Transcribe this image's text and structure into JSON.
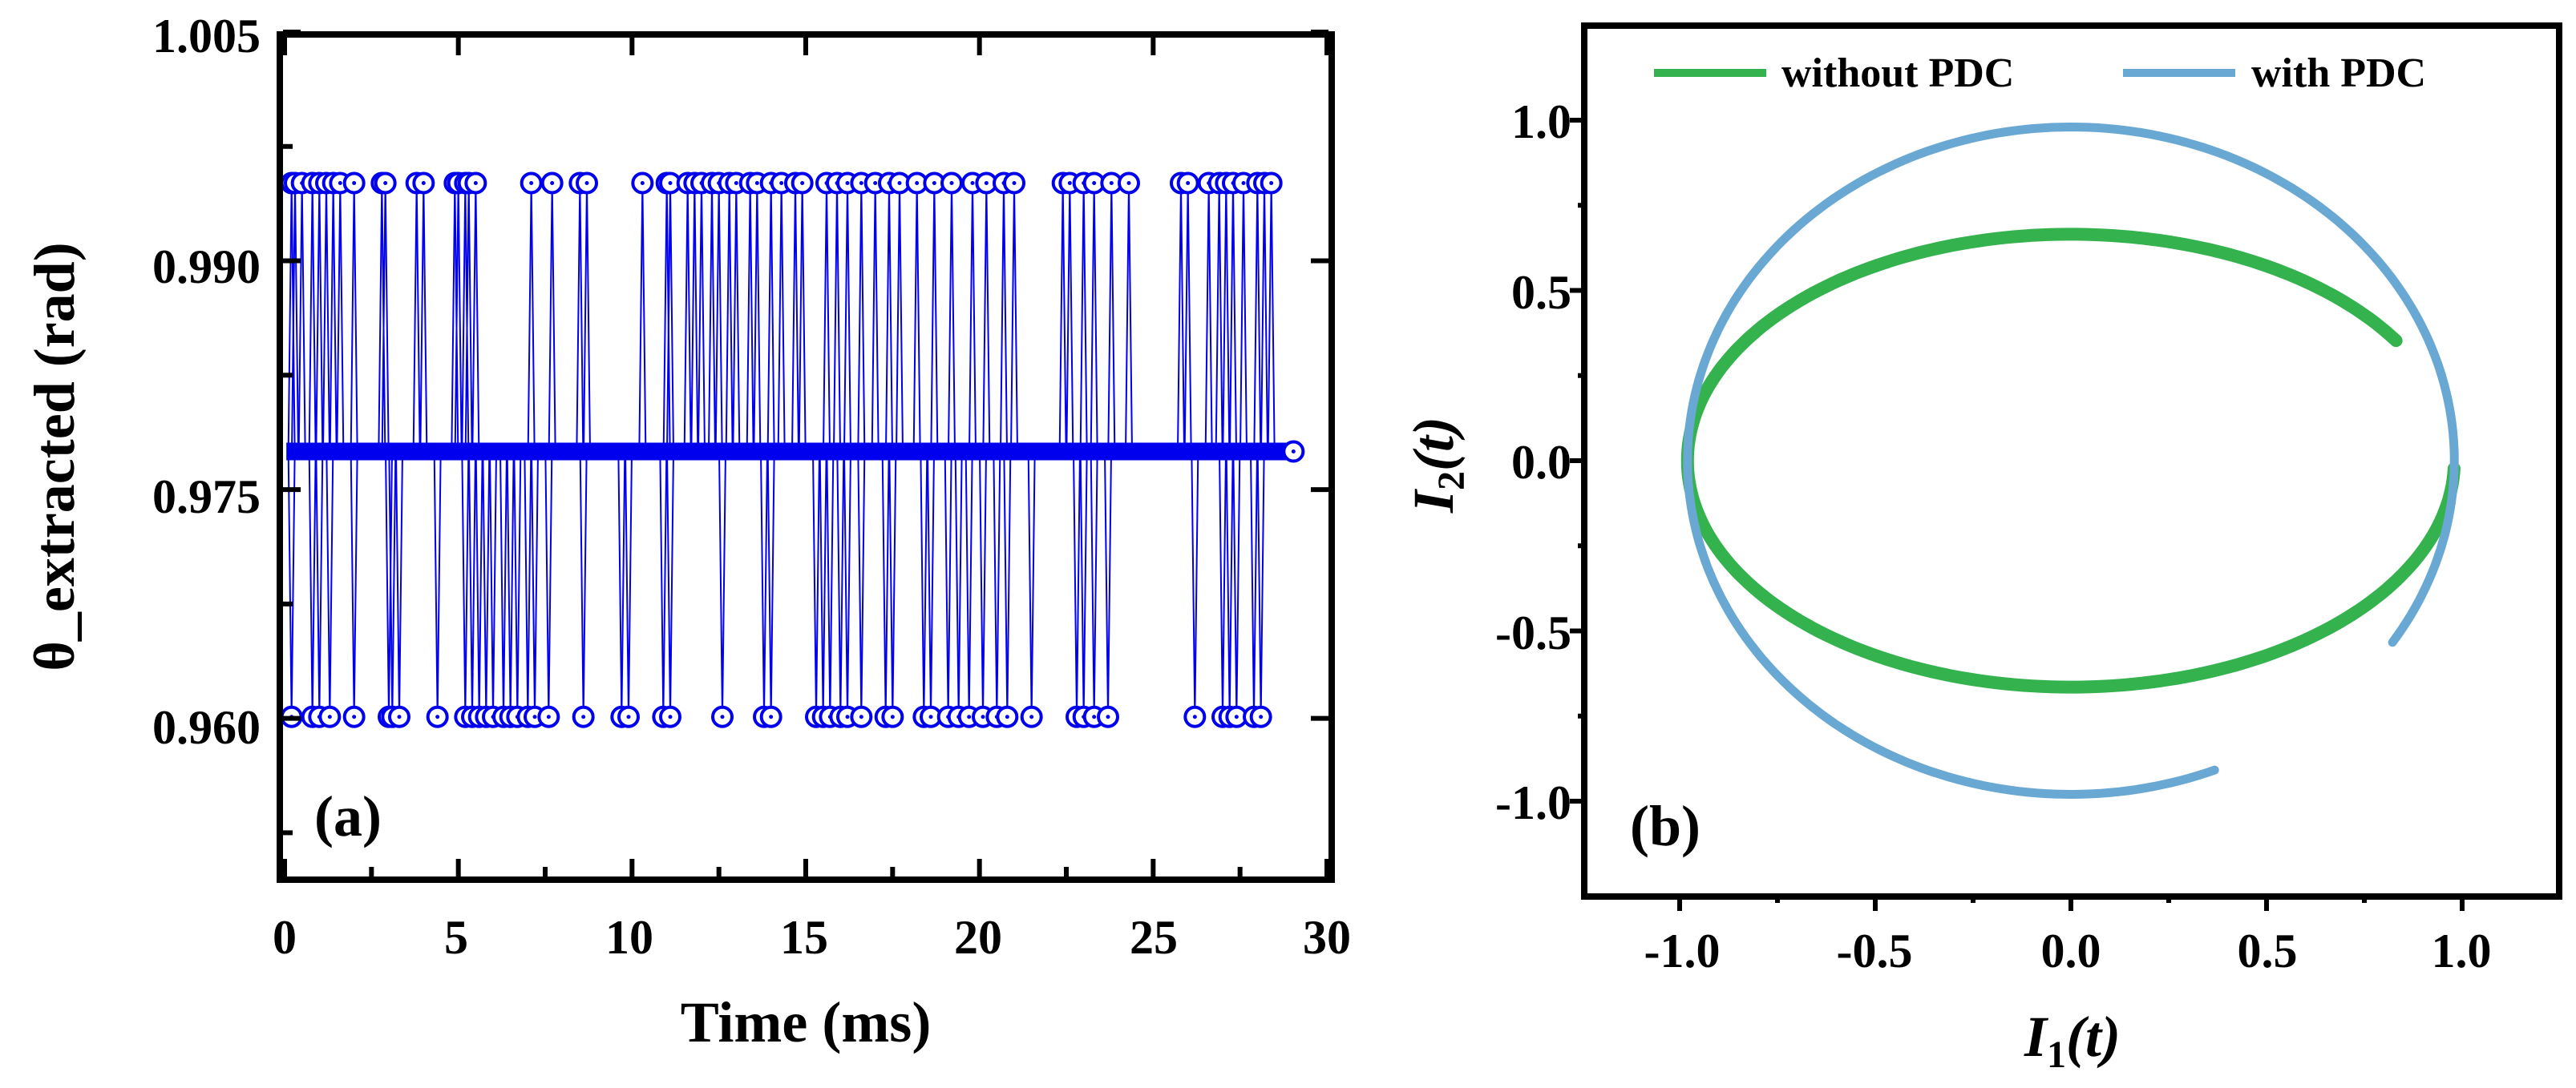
{
  "chart_data": [
    {
      "panel": "(a)",
      "type": "line",
      "xlabel": "Time (ms)",
      "ylabel": "θ_extracted (rad)",
      "xlim": [
        0,
        30
      ],
      "ylim": [
        0.95,
        1.005
      ],
      "xticks": [
        "0",
        "5",
        "10",
        "15",
        "20",
        "25",
        "30"
      ],
      "yticks": [
        "1.005",
        "0.990",
        "0.975",
        "0.960"
      ],
      "color": "#0000ee",
      "levels": {
        "high": 0.9951,
        "baseline": 0.9775,
        "low": 0.9601
      },
      "series": [
        {
          "name": "θ_extracted",
          "marker": "circle-dot",
          "baseline_span": [
            0.05,
            28.9
          ],
          "high_spikes": [
            0.2,
            0.3,
            0.5,
            0.8,
            1.0,
            1.2,
            1.4,
            1.6,
            2.0,
            2.8,
            2.9,
            3.8,
            4.0,
            4.9,
            5.0,
            5.2,
            5.3,
            5.5,
            7.1,
            7.7,
            8.5,
            8.7,
            10.3,
            11.0,
            11.1,
            11.6,
            11.8,
            12.0,
            12.3,
            12.5,
            12.8,
            13.0,
            13.4,
            13.6,
            14.0,
            14.3,
            14.7,
            14.9,
            15.6,
            15.9,
            16.2,
            16.6,
            17.0,
            17.4,
            17.7,
            18.2,
            18.7,
            19.2,
            19.8,
            20.2,
            20.7,
            21.0,
            22.4,
            22.6,
            23.0,
            23.3,
            23.8,
            24.3,
            25.8,
            26.0,
            26.6,
            26.9,
            27.1,
            27.3,
            27.6,
            28.0,
            28.2,
            28.4
          ],
          "low_spikes": [
            0.2,
            0.8,
            1.0,
            1.3,
            2.0,
            3.0,
            3.1,
            3.3,
            4.4,
            5.2,
            5.4,
            5.6,
            5.8,
            6.0,
            6.3,
            6.5,
            6.7,
            7.0,
            7.2,
            7.6,
            8.6,
            9.7,
            9.9,
            10.9,
            11.1,
            12.6,
            13.8,
            14.0,
            15.3,
            15.5,
            15.7,
            16.0,
            16.2,
            16.6,
            17.3,
            17.5,
            18.4,
            18.6,
            19.1,
            19.4,
            19.7,
            20.1,
            20.5,
            20.8,
            21.5,
            22.8,
            23.0,
            23.3,
            23.7,
            26.2,
            27.0,
            27.2,
            27.4,
            27.9,
            28.1
          ]
        }
      ]
    },
    {
      "panel": "(b)",
      "type": "line",
      "xlabel": "I1(t)",
      "ylabel": "I2(t)",
      "xlim": [
        -1.25,
        1.25
      ],
      "ylim": [
        -1.25,
        1.25
      ],
      "xticks": [
        "-1.0",
        "-0.5",
        "0.0",
        "0.5",
        "1.0"
      ],
      "yticks": [
        "1.0",
        "0.5",
        "0.0",
        "-0.5",
        "-1.0"
      ],
      "legend_position": "top",
      "series": [
        {
          "name": "without PDC",
          "color": "#33b24d",
          "shape": "ellipse arc",
          "rx": 0.98,
          "ry": 0.665,
          "start_angle_deg": 32,
          "end_angle_deg": 358
        },
        {
          "name": "with PDC",
          "color": "#6aa8d4",
          "shape": "ellipse arc",
          "rx": 0.98,
          "ry": 0.98,
          "start_angle_deg": 327,
          "end_angle_deg": 652
        }
      ]
    }
  ],
  "panel_a": {
    "label": "(a)",
    "xlabel": "Time (ms)",
    "ylabel": "θ_extracted (rad)",
    "xticks": [
      "0",
      "5",
      "10",
      "15",
      "20",
      "25",
      "30"
    ],
    "yticks": [
      "1.005",
      "0.990",
      "0.975",
      "0.960"
    ]
  },
  "panel_b": {
    "label": "(b)",
    "xlabel_main": "I",
    "xlabel_sub": "1",
    "xlabel_arg": "(t)",
    "ylabel_main": "I",
    "ylabel_sub": "2",
    "ylabel_arg": "(t)",
    "xticks": [
      "-1.0",
      "-0.5",
      "0.0",
      "0.5",
      "1.0"
    ],
    "yticks": [
      "1.0",
      "0.5",
      "0.0",
      "-0.5",
      "-1.0"
    ],
    "legend": [
      {
        "label": "without PDC",
        "color": "#33b24d"
      },
      {
        "label": "with PDC",
        "color": "#6aa8d4"
      }
    ]
  }
}
